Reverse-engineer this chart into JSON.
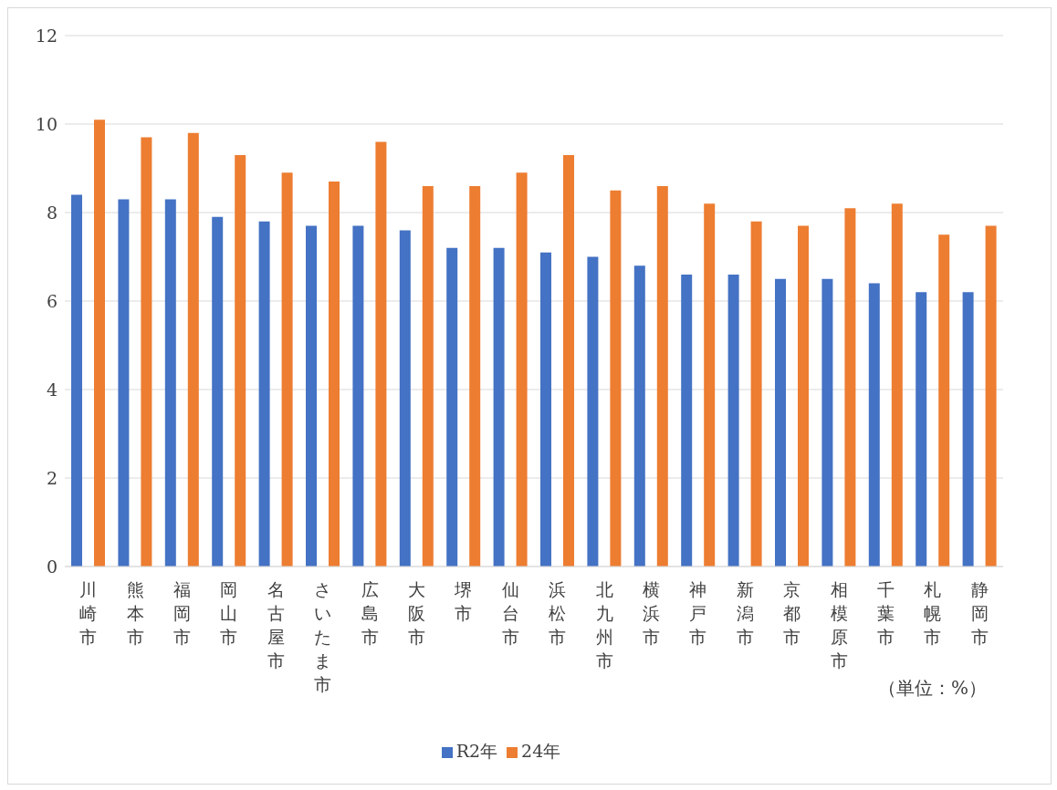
{
  "chart_data": {
    "type": "bar",
    "categories": [
      "川崎市",
      "熊本市",
      "福岡市",
      "岡山市",
      "名古屋市",
      "さいたま市",
      "広島市",
      "大阪市",
      "堺市",
      "仙台市",
      "浜松市",
      "北九州市",
      "横浜市",
      "神戸市",
      "新潟市",
      "京都市",
      "相模原市",
      "千葉市",
      "札幌市",
      "静岡市"
    ],
    "series": [
      {
        "name": "R2年",
        "color": "#4472c4",
        "values": [
          8.4,
          8.3,
          8.3,
          7.9,
          7.8,
          7.7,
          7.7,
          7.6,
          7.2,
          7.2,
          7.1,
          7.0,
          6.8,
          6.6,
          6.6,
          6.5,
          6.5,
          6.4,
          6.2,
          6.2
        ]
      },
      {
        "name": "24年",
        "color": "#ed7d31",
        "values": [
          10.1,
          9.7,
          9.8,
          9.3,
          8.9,
          8.7,
          9.6,
          8.6,
          8.6,
          8.9,
          9.3,
          8.5,
          8.6,
          8.2,
          7.8,
          7.7,
          8.1,
          8.2,
          7.5,
          7.7
        ]
      }
    ],
    "ylim": [
      0,
      12
    ],
    "yticks": [
      0,
      2,
      4,
      6,
      8,
      10,
      12
    ],
    "grid": "y",
    "legend": "bottom",
    "annotations": [
      "（単位：%）"
    ]
  }
}
